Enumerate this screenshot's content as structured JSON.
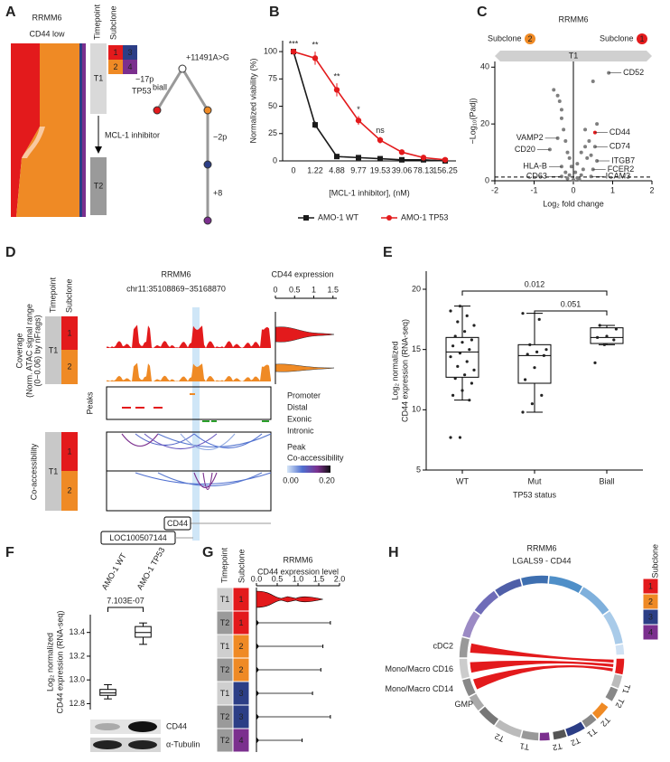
{
  "panel_labels": [
    "A",
    "B",
    "C",
    "D",
    "E",
    "F",
    "G",
    "H"
  ],
  "subclone_colors": {
    "1": "#e31a1c",
    "2": "#ef8a25",
    "3": "#2c3e86",
    "4": "#7b2f8e"
  },
  "fish": {
    "title": "RRMM6",
    "subtitle": "CD44 low",
    "header": [
      "Timepoint",
      "Subclone"
    ],
    "timepoints": [
      "T1",
      "T2"
    ],
    "treatment": "MCL-1 inhibitor",
    "subclones": [
      "1",
      "3",
      "2",
      "4"
    ],
    "tree_labels": [
      "−17p",
      "TP53",
      "biall",
      "+11491A>G",
      "−2p",
      "+8"
    ]
  },
  "atac": {
    "header": [
      "Timepoint",
      "Subclone"
    ],
    "title": "RRMM6",
    "region": "chr11:35108869−35168870",
    "expr_title": "CD44 expression",
    "expr_xlim": [
      0,
      1.6
    ],
    "expr_xticks": [
      0,
      0.5,
      1,
      1.5
    ],
    "coverage_label": [
      "Coverage",
      "(Norm. ATAC signal range",
      "(0−0.06) by nFrags)"
    ],
    "timepoint": "T1",
    "subclones": [
      "1",
      "2"
    ],
    "peaks_label": "Peaks",
    "peak_types": [
      "Promoter",
      "Distal",
      "Exonic",
      "Intronic"
    ],
    "coaccess_label": "Co-accessibility",
    "coaccess_legend": [
      "Peak",
      "Co-accessibility"
    ],
    "scale": [
      "0.00",
      "0.20"
    ],
    "genes": [
      "CD44",
      "LOC100507144"
    ]
  },
  "blot": {
    "labels": [
      "CD44",
      "α-Tubulin"
    ]
  },
  "circos": {
    "title": "RRMM6",
    "subtitle": "LGALS9 - CD44",
    "legend_title": "Subclone",
    "legend": [
      "1",
      "2",
      "3",
      "4"
    ],
    "cell_types": [
      "cDC2",
      "Mono/Macro CD16",
      "Mono/Macro CD14",
      "GMP"
    ],
    "segment_labels": [
      "T1",
      "T2",
      "T2",
      "T1",
      "T2",
      "T2",
      "T1",
      "T2"
    ]
  },
  "chart_data": [
    {
      "type": "line",
      "categories": [
        "0",
        "1.22",
        "4.88",
        "9.77",
        "19.53",
        "39.06",
        "78.13",
        "156.25"
      ],
      "x_label": "[MCL-1 inhibitor], (nM)",
      "y_label": "Normalized viability (%)",
      "ylim": [
        0,
        110
      ],
      "yticks": [
        0,
        25,
        50,
        75,
        100
      ],
      "legend": "bottom",
      "series": [
        {
          "name": "AMO-1 WT",
          "color": "#1a1a1a",
          "values": [
            100,
            33,
            4,
            3,
            2,
            1,
            1,
            0
          ],
          "errors": [
            1,
            3,
            1,
            1,
            1,
            0.5,
            0.5,
            0.5
          ]
        },
        {
          "name": "AMO-1 TP53",
          "color": "#e31a1c",
          "values": [
            100,
            94,
            65,
            37,
            19,
            8,
            3,
            1
          ],
          "errors": [
            1,
            6,
            6,
            4,
            3,
            1,
            1,
            0.5
          ]
        }
      ],
      "annotations": [
        "***",
        "**",
        "**",
        "*",
        "ns",
        null,
        null,
        null
      ]
    },
    {
      "type": "scatter",
      "title": "RRMM6",
      "left_label": "Subclone",
      "left_group": "2",
      "right_label": "Subclone",
      "right_group": "1",
      "bar_label": "T1",
      "x_label": "Log₂ fold change",
      "y_label": "−Log₁₀(Padj)",
      "xlim": [
        -2,
        2
      ],
      "xticks": [
        -2,
        -1,
        0,
        1,
        2
      ],
      "ylim": [
        0,
        42
      ],
      "yticks": [
        0,
        20,
        40
      ],
      "threshold": 1.3,
      "color": "#7f7f7f",
      "highlight": "CD44",
      "highlight_color": "#e31a1c",
      "x": [
        0.9,
        0.55,
        0.55,
        0.6,
        0.5,
        0.45,
        -0.3,
        -0.3,
        -0.6,
        -0.4,
        -0.5,
        -0.4,
        -0.3,
        -0.3,
        -0.25,
        -0.2,
        -0.15,
        -0.1,
        -0.05,
        0.05,
        0.1,
        0.2,
        0.3,
        0.4,
        0.5,
        0.45,
        0.35,
        0.25,
        -0.2,
        -0.1,
        0.1,
        0.2,
        0.15,
        -0.15,
        0,
        0.6,
        -0.35,
        0.3
      ],
      "y": [
        38,
        17,
        12,
        7,
        4,
        1.5,
        5,
        1.5,
        11,
        15,
        32,
        30,
        25,
        22,
        18,
        14,
        10,
        8,
        5,
        3,
        6,
        10,
        12,
        14,
        35,
        9,
        8,
        4,
        3,
        2,
        1,
        2,
        0.5,
        0.8,
        0.3,
        20,
        28,
        18
      ],
      "labels": [
        "CD52",
        "CD44",
        "CD74",
        "ITGB7",
        "FCER2",
        "ICAM3",
        "HLA-B",
        "CD63",
        "CD20",
        "VAMP2",
        null,
        null,
        null,
        null,
        null,
        null,
        null,
        null,
        null,
        null,
        null,
        null,
        null,
        null,
        null,
        null,
        null,
        null,
        null,
        null,
        null,
        null,
        null,
        null,
        null,
        null,
        null,
        null
      ]
    },
    {
      "type": "box",
      "categories": [
        "WT",
        "Mut",
        "Biall"
      ],
      "x_label": "TP53 status",
      "y_label": [
        "Log₂ normalized",
        "CD44 expression (RNA-seq)"
      ],
      "ylim": [
        5,
        21.5
      ],
      "yticks": [
        5,
        10,
        15,
        20
      ],
      "boxes": [
        {
          "whislo": 10.8,
          "q1": 12.7,
          "med": 14.8,
          "q3": 16,
          "whishi": 18.6
        },
        {
          "whislo": 9.8,
          "q1": 12.2,
          "med": 14.5,
          "q3": 15.4,
          "whishi": 18
        },
        {
          "whislo": 15.4,
          "q1": 15.5,
          "med": 16,
          "q3": 16.8,
          "whishi": 17
        }
      ],
      "points": [
        [
          7.7,
          7.7,
          10.8,
          11.2,
          11.6,
          12.2,
          12.6,
          12.9,
          13.3,
          13.6,
          14,
          14.4,
          14.7,
          15,
          15.3,
          15.6,
          15.8,
          16.1,
          16.5,
          17,
          17.3,
          17.8,
          18.2,
          18.6
        ],
        [
          9.8,
          10.5,
          11.2,
          12.5,
          13.5,
          14.5,
          14.6,
          14.8,
          15,
          15.4,
          17.5,
          18
        ],
        [
          13.9,
          15.4,
          15.8,
          16,
          16.1,
          16.7,
          17
        ]
      ],
      "comparisons": [
        {
          "groups": [
            "WT",
            "Biall"
          ],
          "p": 0.012
        },
        {
          "groups": [
            "Mut",
            "Biall"
          ],
          "p": 0.051
        }
      ]
    },
    {
      "type": "box",
      "categories": [
        "AMO-1 WT",
        "AMO-1 TP53"
      ],
      "y_label": [
        "Log₂ normalized",
        "CD44 expression (RNA-seq)"
      ],
      "ylim": [
        12.75,
        13.55
      ],
      "yticks": [
        12.8,
        {
          "value": 13,
          "label": "13.0"
        },
        13.2,
        13.4
      ],
      "boxes": [
        {
          "whislo": 12.84,
          "q1": 12.87,
          "med": 12.89,
          "q3": 12.92,
          "whishi": 12.96
        },
        {
          "whislo": 13.3,
          "q1": 13.36,
          "med": 13.4,
          "q3": 13.45,
          "whishi": 13.48
        }
      ],
      "comparisons": [
        {
          "groups": [
            "AMO-1 WT",
            "AMO-1 TP53"
          ],
          "p": "7.103E-07"
        }
      ]
    },
    {
      "type": "violin",
      "title": "RRMM6",
      "x_label": "CD44 expression level",
      "xlim": [
        0,
        2
      ],
      "xticks": [
        {
          "value": 0,
          "label": "0.0"
        },
        0.5,
        {
          "value": 1,
          "label": "1.0"
        },
        1.5,
        {
          "value": 2,
          "label": "2.0"
        }
      ],
      "header": [
        "Timepoint",
        "Subclone"
      ],
      "timepoints": [
        "T1",
        "T2",
        "T1",
        "T2",
        "T1",
        "T2",
        "T2"
      ],
      "subclones": [
        "1",
        "1",
        "2",
        "2",
        "3",
        "3",
        "4"
      ],
      "values": [
        1.6,
        1.78,
        1.6,
        1.55,
        1.35,
        1.78,
        1.1
      ]
    }
  ]
}
